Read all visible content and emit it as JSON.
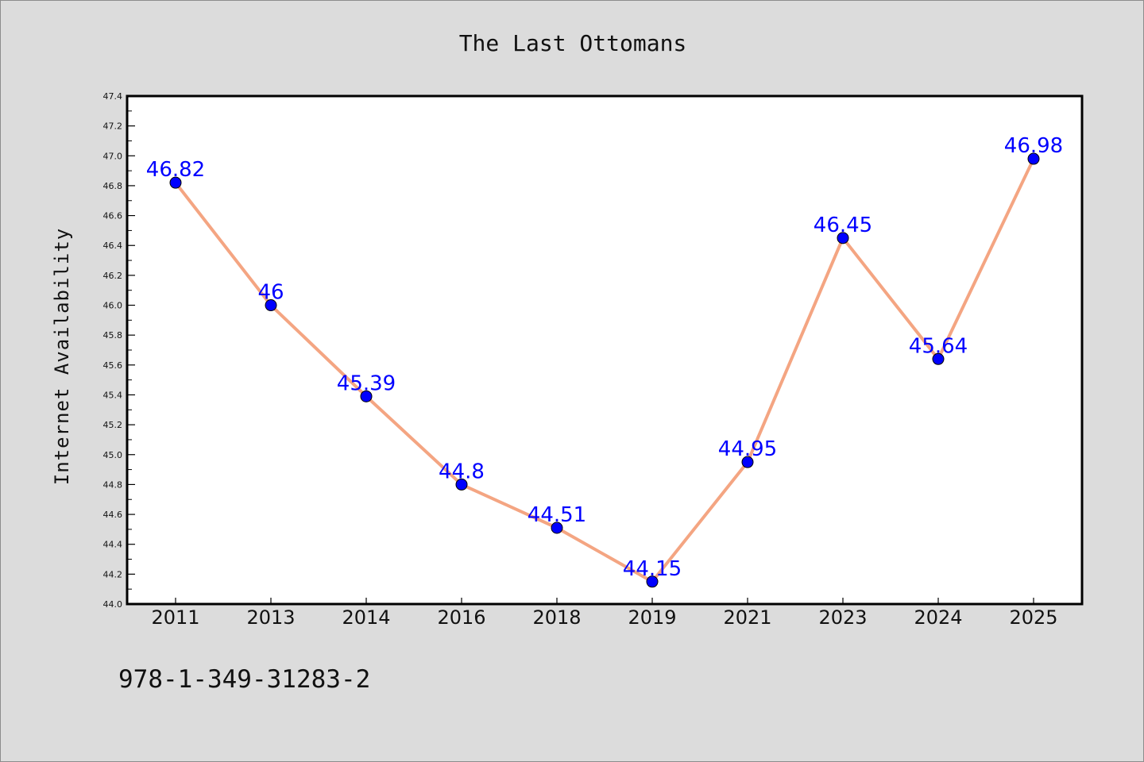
{
  "footer": {
    "isbn": "978-1-349-31283-2"
  },
  "chart_data": {
    "type": "line",
    "title": "The Last Ottomans",
    "xlabel": "",
    "ylabel": "Internet Availability",
    "categories": [
      "2011",
      "2013",
      "2014",
      "2016",
      "2018",
      "2019",
      "2021",
      "2023",
      "2024",
      "2025"
    ],
    "series": [
      {
        "values": [
          46.82,
          46,
          45.39,
          44.8,
          44.51,
          44.15,
          44.95,
          46.45,
          45.64,
          46.98
        ],
        "data_labels": [
          "46.82",
          "46",
          "45.39",
          "44.8",
          "44.51",
          "44.15",
          "44.95",
          "46.45",
          "45.64",
          "46.98"
        ]
      }
    ],
    "ylim": [
      44.0,
      47.4
    ],
    "yticks": [
      "44.0",
      "44.2",
      "44.4",
      "44.6",
      "44.8",
      "45.0",
      "45.2",
      "45.4",
      "45.6",
      "45.8",
      "46.0",
      "46.2",
      "46.4",
      "46.6",
      "46.8",
      "47.0",
      "47.2",
      "47.4"
    ],
    "grid": false,
    "legend": "none",
    "colors": {
      "line": "#f4a582",
      "marker": "#0000ff",
      "data_label": "#0000ff",
      "background": "#dcdcdc",
      "plot_background": "#ffffff"
    }
  }
}
